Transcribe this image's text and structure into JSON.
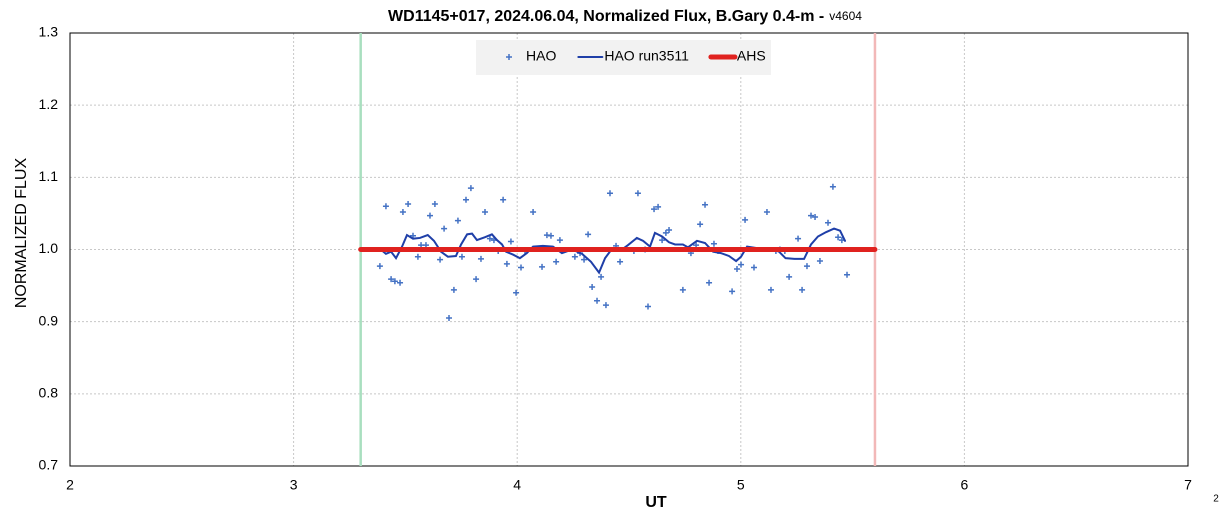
{
  "chart_data": {
    "type": "scatter",
    "title": "WD1145+017, 2024.06.04, Normalized Flux, B.Gary 0.4-m -",
    "subtitle": "v4604",
    "xlabel": "UT",
    "ylabel": "NORMALIZED FLUX",
    "annotation": "2",
    "xlim": [
      2,
      7
    ],
    "xticks": [
      2,
      3,
      4,
      5,
      6,
      7
    ],
    "ylim": [
      0.7,
      1.3
    ],
    "yticks": [
      0.7,
      0.8,
      0.9,
      {
        "value": 1,
        "label": "1.0"
      },
      1.1,
      1.2,
      1.3
    ],
    "grid": true,
    "legend": "top",
    "vlines": [
      {
        "x": 3.3,
        "color": "#a9dfbf"
      },
      {
        "x": 5.6,
        "color": "#f2b8b8"
      }
    ],
    "series": [
      {
        "name": "HAO",
        "type": "scatter",
        "color": "#4472c4",
        "x": [
          3.386,
          3.413,
          3.436,
          3.453,
          3.476,
          3.489,
          3.512,
          3.534,
          3.556,
          3.57,
          3.592,
          3.61,
          3.632,
          3.655,
          3.673,
          3.695,
          3.717,
          3.735,
          3.753,
          3.771,
          3.793,
          3.816,
          3.838,
          3.856,
          3.878,
          3.896,
          3.915,
          3.937,
          3.954,
          3.972,
          3.995,
          4.017,
          4.035,
          4.071,
          4.111,
          4.133,
          4.151,
          4.174,
          4.191,
          4.258,
          4.281,
          4.299,
          4.317,
          4.335,
          4.357,
          4.375,
          4.397,
          4.415,
          4.442,
          4.46,
          4.522,
          4.54,
          4.572,
          4.585,
          4.612,
          4.63,
          4.648,
          4.665,
          4.679,
          4.741,
          4.777,
          4.8,
          4.818,
          4.84,
          4.858,
          4.88,
          4.898,
          4.961,
          4.983,
          5.001,
          5.019,
          5.059,
          5.117,
          5.135,
          5.157,
          5.175,
          5.197,
          5.216,
          5.256,
          5.274,
          5.296,
          5.314,
          5.332,
          5.354,
          5.39,
          5.412,
          5.435,
          5.452,
          5.475
        ],
        "values": [
          0.977,
          1.06,
          0.959,
          0.956,
          0.954,
          1.052,
          1.063,
          1.019,
          0.99,
          1.006,
          1.006,
          1.047,
          1.063,
          0.986,
          1.029,
          0.905,
          0.944,
          1.04,
          0.99,
          1.069,
          1.085,
          0.959,
          0.987,
          1.052,
          1.015,
          1.013,
          0.998,
          1.069,
          0.98,
          1.011,
          0.94,
          0.975,
          0.998,
          1.052,
          0.976,
          1.02,
          1.019,
          0.983,
          1.013,
          0.99,
          0.995,
          0.986,
          1.021,
          0.948,
          0.929,
          0.962,
          0.923,
          1.078,
          1.005,
          0.983,
          0.998,
          1.078,
          1.0,
          0.921,
          1.056,
          1.059,
          1.013,
          1.023,
          1.027,
          0.944,
          0.995,
          1.006,
          1.035,
          1.062,
          0.954,
          1.008,
          0.998,
          0.942,
          0.973,
          0.979,
          1.041,
          0.975,
          1.052,
          0.944,
          0.998,
          1.0,
          0.998,
          0.962,
          1.015,
          0.944,
          0.977,
          1.047,
          1.045,
          0.984,
          1.037,
          1.087,
          1.017,
          1.013,
          0.965
        ]
      },
      {
        "name": "HAO run3511",
        "type": "line",
        "color": "#1f3fa8",
        "x": [
          3.386,
          3.413,
          3.436,
          3.458,
          3.485,
          3.507,
          3.534,
          3.565,
          3.6,
          3.628,
          3.659,
          3.69,
          3.726,
          3.749,
          3.776,
          3.798,
          3.82,
          3.856,
          3.887,
          3.91,
          3.932,
          3.95,
          3.981,
          4.012,
          4.043,
          4.071,
          4.115,
          4.16,
          4.2,
          4.245,
          4.29,
          4.33,
          4.366,
          4.393,
          4.424,
          4.46,
          4.495,
          4.535,
          4.563,
          4.594,
          4.616,
          4.648,
          4.679,
          4.706,
          4.741,
          4.764,
          4.804,
          4.84,
          4.876,
          4.911,
          4.947,
          4.979,
          5.001,
          5.028,
          5.072,
          5.104,
          5.139,
          5.171,
          5.2,
          5.24,
          5.283,
          5.314,
          5.345,
          5.381,
          5.417,
          5.444,
          5.466
        ],
        "values": [
          1.001,
          0.994,
          0.997,
          0.988,
          1.004,
          1.02,
          1.015,
          1.016,
          1.02,
          1.012,
          0.997,
          0.99,
          0.991,
          1.007,
          1.021,
          1.022,
          1.013,
          1.017,
          1.021,
          1.013,
          1.007,
          0.997,
          0.993,
          0.988,
          0.995,
          1.004,
          1.005,
          1.004,
          0.995,
          1.0,
          0.994,
          0.983,
          0.968,
          0.988,
          1.001,
          0.998,
          1.006,
          1.016,
          1.012,
          1.004,
          1.023,
          1.018,
          1.01,
          1.007,
          1.007,
          1.003,
          1.012,
          1.009,
          0.997,
          0.995,
          0.991,
          0.984,
          0.99,
          1.004,
          1.002,
          1.001,
          1.001,
          0.997,
          0.988,
          0.987,
          0.987,
          1.007,
          1.018,
          1.024,
          1.029,
          1.026,
          1.012
        ]
      },
      {
        "name": "AHS",
        "type": "thickline",
        "color": "#e0221f",
        "x": [
          3.3,
          5.6
        ],
        "values": [
          1,
          1
        ]
      }
    ]
  }
}
